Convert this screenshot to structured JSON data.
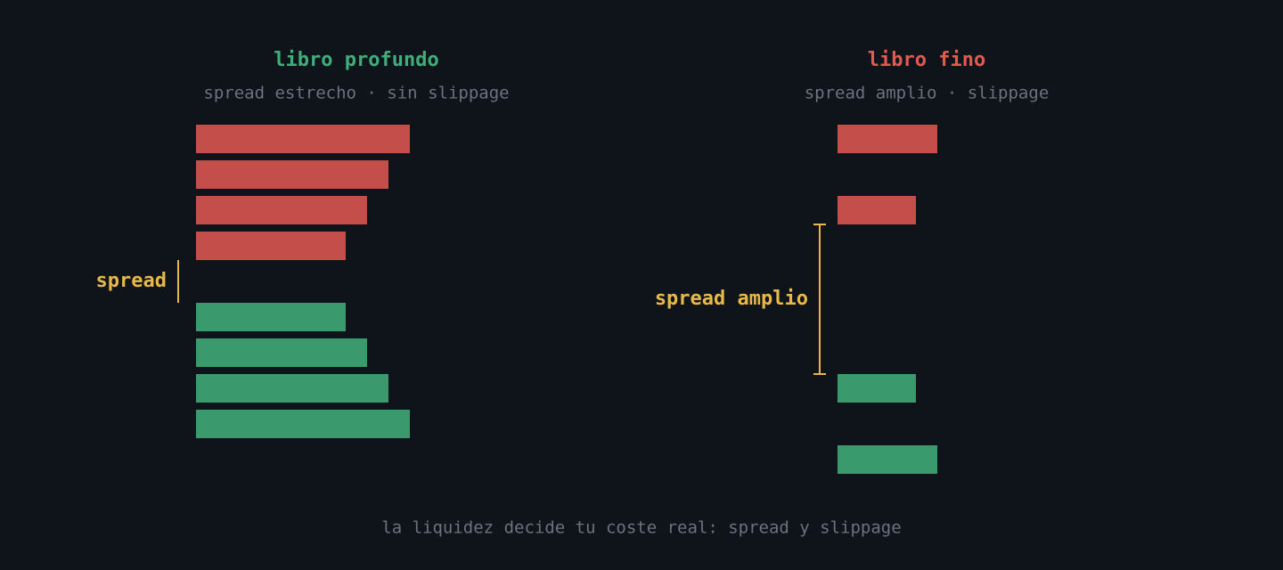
{
  "left": {
    "title": "libro profundo",
    "subtitle": "spread estrecho · sin slippage",
    "spread_label": "spread"
  },
  "right": {
    "title": "libro fino",
    "subtitle": "spread amplio · slippage",
    "spread_label": "spread amplio"
  },
  "footer": "la liquidez decide tu coste real: spread y slippage"
}
